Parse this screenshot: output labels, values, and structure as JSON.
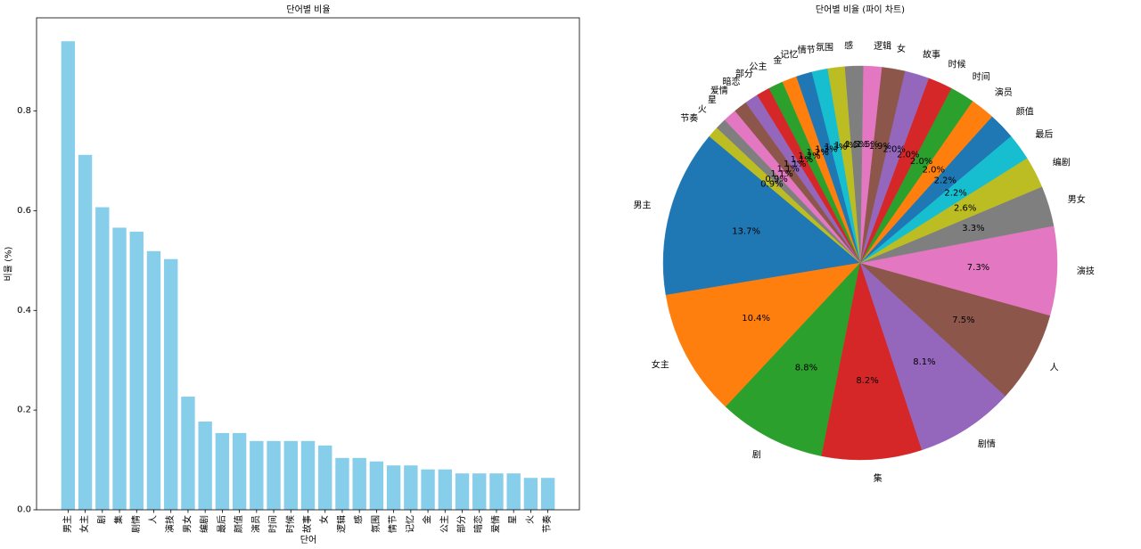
{
  "chart_data": [
    {
      "type": "bar",
      "title": "단어별 비율",
      "xlabel": "단어",
      "ylabel": "비율 (%)",
      "categories": [
        "男主",
        "女主",
        "剧",
        "集",
        "剧情",
        "人",
        "演技",
        "男女",
        "编剧",
        "最后",
        "颜值",
        "演员",
        "时间",
        "时候",
        "故事",
        "女",
        "逻辑",
        "感",
        "氛围",
        "情节",
        "记忆",
        "金",
        "公主",
        "部分",
        "暗恋",
        "爱情",
        "星",
        "火",
        "节奏"
      ],
      "values": [
        0.94,
        0.712,
        0.607,
        0.566,
        0.558,
        0.519,
        0.503,
        0.227,
        0.177,
        0.154,
        0.154,
        0.138,
        0.138,
        0.138,
        0.138,
        0.129,
        0.104,
        0.104,
        0.097,
        0.089,
        0.089,
        0.081,
        0.081,
        0.073,
        0.073,
        0.073,
        0.073,
        0.064,
        0.064
      ],
      "ylim": [
        0,
        0.987
      ],
      "yticks": [
        0.0,
        0.2,
        0.4,
        0.6,
        0.8
      ],
      "ytick_labels": [
        "0.0",
        "0.2",
        "0.4",
        "0.6",
        "0.8"
      ],
      "grid": false,
      "color": "#87ceeb"
    },
    {
      "type": "pie",
      "title": "단어별 비율 (파이 차트)",
      "labels": [
        "男主",
        "女主",
        "剧",
        "集",
        "剧情",
        "人",
        "演技",
        "男女",
        "编剧",
        "最后",
        "颜值",
        "演员",
        "时间",
        "时候",
        "故事",
        "女",
        "逻辑",
        "感",
        "氛围",
        "情节",
        "记忆",
        "金",
        "公主",
        "部分",
        "暗恋",
        "爱情",
        "星",
        "火",
        "节奏"
      ],
      "percents": [
        13.7,
        10.4,
        8.8,
        8.2,
        8.1,
        7.5,
        7.3,
        3.3,
        2.6,
        2.2,
        2.2,
        2.0,
        2.0,
        2.0,
        2.0,
        1.9,
        1.5,
        1.5,
        1.4,
        1.3,
        1.3,
        1.2,
        1.2,
        1.1,
        1.1,
        1.1,
        1.1,
        0.9,
        0.9
      ],
      "percent_labels": [
        "13.7%",
        "10.4%",
        "8.8%",
        "8.2%",
        "8.1%",
        "7.5%",
        "7.3%",
        "3.3%",
        "2.6%",
        "2.2%",
        "2.2%",
        "2.0%",
        "2.0%",
        "2.0%",
        "2.0%",
        "1.9%",
        "1.5%",
        "1.5%",
        "1.4%",
        "1.3%",
        "1.3%",
        "1.2%",
        "1.2%",
        "1.1%",
        "1.1%",
        "1.1%",
        "1.1%",
        "0.9%",
        "0.9%"
      ],
      "colors": [
        "#1f77b4",
        "#ff7f0e",
        "#2ca02c",
        "#d62728",
        "#9467bd",
        "#8c564b",
        "#e377c2",
        "#7f7f7f",
        "#bcbd22",
        "#17becf"
      ]
    }
  ]
}
